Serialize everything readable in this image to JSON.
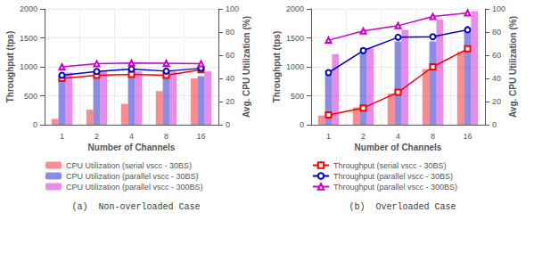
{
  "chart_data": [
    {
      "type": "bar",
      "title": "(a)  Non-overloaded Case",
      "categories": [
        1,
        2,
        4,
        8,
        16
      ],
      "xlabel": "Number of Channels",
      "ylabel": "Throughput (tps)",
      "y2label": "Avg. CPU Utilization (%)",
      "ylim": [
        0,
        2000
      ],
      "yticks": [
        0,
        500,
        1000,
        1500,
        2000
      ],
      "y2lim": [
        0,
        100
      ],
      "y2ticks": [
        0,
        20,
        40,
        60,
        80,
        100
      ],
      "grid": true,
      "legend": "bottom",
      "series": [
        {
          "name": "CPU Utilization (serial vscc - 30BS)",
          "type": "bar",
          "axis": "y2",
          "color": "#ff0000",
          "values": [
            5,
            13,
            18,
            29,
            40
          ]
        },
        {
          "name": "CPU Utilization (parallel vscc - 30BS)",
          "type": "bar",
          "axis": "y2",
          "color": "#0000cc",
          "values": [
            42,
            42,
            43,
            43,
            42
          ]
        },
        {
          "name": "CPU Utilization (parallel vscc - 300BS)",
          "type": "bar",
          "axis": "y2",
          "color": "#cc00cc",
          "values": [
            45,
            46,
            46,
            46,
            46
          ]
        },
        {
          "name": "Throughput (serial vscc - 30BS)",
          "type": "line",
          "marker": "square",
          "color": "#ff0000",
          "values": [
            800,
            855,
            870,
            855,
            950
          ]
        },
        {
          "name": "Throughput (parallel vscc - 30BS)",
          "type": "line",
          "marker": "circle",
          "color": "#0000cc",
          "values": [
            855,
            920,
            960,
            925,
            975
          ]
        },
        {
          "name": "Throughput (parallel vscc - 300BS)",
          "type": "line",
          "marker": "triangle",
          "color": "#cc00cc",
          "values": [
            1000,
            1055,
            1065,
            1060,
            1055
          ]
        }
      ]
    },
    {
      "type": "line",
      "title": "(b)  Overloaded Case",
      "categories": [
        1,
        2,
        4,
        8,
        16
      ],
      "xlabel": "Number of Channels",
      "ylabel": "Throughput (tps)",
      "y2label": "Avg. CPU Utilization (%)",
      "ylim": [
        0,
        2000
      ],
      "yticks": [
        0,
        500,
        1000,
        1500,
        2000
      ],
      "y2lim": [
        0,
        100
      ],
      "y2ticks": [
        0,
        20,
        40,
        60,
        80,
        100
      ],
      "grid": true,
      "legend": "bottom",
      "series": [
        {
          "name": "CPU Utilization (serial vscc - 30BS)",
          "type": "bar",
          "axis": "y2",
          "color": "#ff0000",
          "values": [
            8,
            15,
            27,
            48,
            63
          ]
        },
        {
          "name": "CPU Utilization (parallel vscc - 30BS)",
          "type": "bar",
          "axis": "y2",
          "color": "#0000cc",
          "values": [
            43,
            62,
            72,
            72,
            80
          ]
        },
        {
          "name": "CPU Utilization (parallel vscc - 300BS)",
          "type": "bar",
          "axis": "y2",
          "color": "#cc00cc",
          "values": [
            61,
            66,
            82,
            91,
            98
          ]
        },
        {
          "name": "Throughput (serial vscc - 30BS)",
          "type": "line",
          "marker": "square",
          "color": "#ff0000",
          "values": [
            170,
            290,
            560,
            1000,
            1310
          ]
        },
        {
          "name": "Throughput (parallel vscc - 30BS)",
          "type": "line",
          "marker": "circle",
          "color": "#0000cc",
          "values": [
            900,
            1280,
            1510,
            1520,
            1640
          ]
        },
        {
          "name": "Throughput (parallel vscc - 300BS)",
          "type": "line",
          "marker": "triangle",
          "color": "#cc00cc",
          "values": [
            1460,
            1620,
            1710,
            1870,
            1930
          ]
        }
      ]
    }
  ]
}
